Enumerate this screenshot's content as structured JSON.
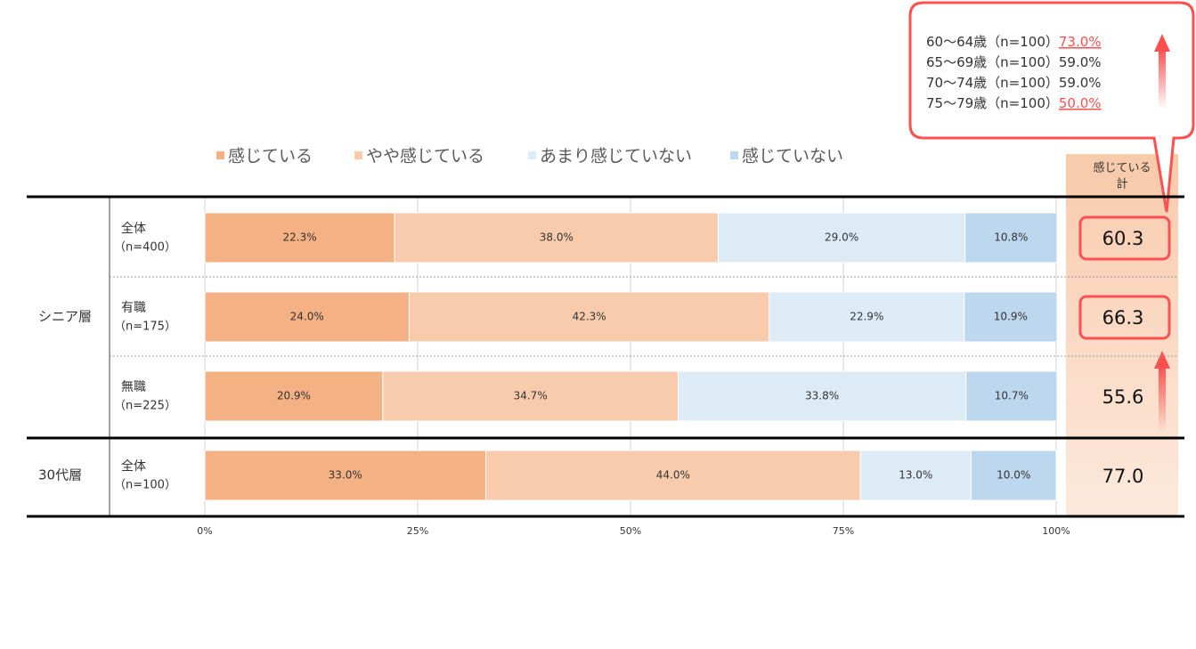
{
  "chart_data": {
    "type": "bar",
    "orientation": "horizontal",
    "stacked": true,
    "category_groups": [
      "シニア層",
      "シニア層",
      "シニア層",
      "30代層"
    ],
    "categories": [
      "全体",
      "有職",
      "無職",
      "全体"
    ],
    "category_notes": [
      "（n=400）",
      "（n=175）",
      "（n=225）",
      "（n=100）"
    ],
    "series": [
      {
        "name": "感じている",
        "color": "#f4b183",
        "values": [
          22.3,
          24.0,
          20.9,
          33.0
        ],
        "value_labels": [
          "22.3%",
          "24.0%",
          "20.9%",
          "33.0%"
        ]
      },
      {
        "name": "やや感じている",
        "color": "#f8cbad",
        "values": [
          38.0,
          42.3,
          34.7,
          44.0
        ],
        "value_labels": [
          "38.0%",
          "42.3%",
          "34.7%",
          "44.0%"
        ]
      },
      {
        "name": "あまり感じていない",
        "color": "#ddebf7",
        "values": [
          29.0,
          22.9,
          33.8,
          13.0
        ],
        "value_labels": [
          "29.0%",
          "22.9%",
          "33.8%",
          "13.0%"
        ]
      },
      {
        "name": "感じていない",
        "color": "#bdd7ee",
        "values": [
          10.8,
          10.9,
          10.7,
          10.0
        ],
        "value_labels": [
          "10.8%",
          "10.9%",
          "10.7%",
          "10.0%"
        ]
      }
    ],
    "xlim": [
      0,
      100
    ],
    "xticks": [
      {
        "value": 0,
        "label": "0%"
      },
      {
        "value": 25,
        "label": "25%"
      },
      {
        "value": 50,
        "label": "50%"
      },
      {
        "value": 75,
        "label": "75%"
      },
      {
        "value": 100,
        "label": "100%"
      }
    ],
    "grid": true,
    "totals": {
      "title": [
        "感じている",
        "計"
      ],
      "values": [
        60.3,
        66.3,
        55.6,
        77.0
      ],
      "value_labels": [
        "60.3",
        "66.3",
        "55.6",
        "77.0"
      ],
      "highlight": [
        true,
        true,
        false,
        false
      ]
    },
    "callout": [
      {
        "label": "60～64歳（n=100）",
        "value_label": "73.0%",
        "highlight": true
      },
      {
        "label": "65～69歳（n=100）",
        "value_label": "59.0%",
        "highlight": false
      },
      {
        "label": "70～74歳（n=100）",
        "value_label": "59.0%",
        "highlight": false
      },
      {
        "label": "75～79歳（n=100）",
        "value_label": "50.0%",
        "highlight": true
      }
    ]
  }
}
